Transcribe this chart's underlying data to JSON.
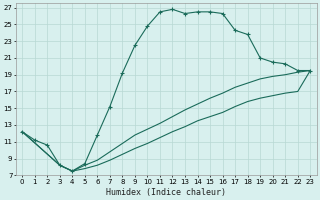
{
  "xlabel": "Humidex (Indice chaleur)",
  "bg_color": "#d8f0ee",
  "grid_color": "#b8d8d4",
  "line_color": "#1a6b5a",
  "xlim": [
    -0.5,
    23.5
  ],
  "ylim": [
    7,
    27.5
  ],
  "xticks": [
    0,
    1,
    2,
    3,
    4,
    5,
    6,
    7,
    8,
    9,
    10,
    11,
    12,
    13,
    14,
    15,
    16,
    17,
    18,
    19,
    20,
    21,
    22,
    23
  ],
  "yticks": [
    7,
    9,
    11,
    13,
    15,
    17,
    19,
    21,
    23,
    25,
    27
  ],
  "s1_x": [
    0,
    1,
    2,
    3,
    4,
    5,
    6,
    7,
    8,
    9,
    10,
    11,
    12,
    13,
    14,
    15,
    16,
    17,
    18,
    19,
    20,
    21,
    22,
    23
  ],
  "s1_y": [
    12.2,
    11.2,
    10.6,
    8.2,
    7.5,
    8.4,
    11.8,
    15.2,
    19.2,
    22.5,
    24.8,
    26.5,
    26.8,
    26.3,
    26.5,
    26.5,
    26.3,
    24.3,
    23.8,
    21.0,
    20.5,
    20.3,
    19.5,
    19.5
  ],
  "s2_x": [
    0,
    3,
    4,
    5,
    6,
    7,
    8,
    9,
    10,
    11,
    12,
    13,
    14,
    15,
    16,
    17,
    18,
    19,
    20,
    21,
    22,
    23
  ],
  "s2_y": [
    12.2,
    8.2,
    7.5,
    8.2,
    8.8,
    9.8,
    10.8,
    11.8,
    12.5,
    13.2,
    14.0,
    14.8,
    15.5,
    16.2,
    16.8,
    17.5,
    18.0,
    18.5,
    18.8,
    19.0,
    19.3,
    19.5
  ],
  "s3_x": [
    0,
    3,
    4,
    5,
    6,
    7,
    8,
    9,
    10,
    11,
    12,
    13,
    14,
    15,
    16,
    17,
    18,
    19,
    20,
    21,
    22,
    23
  ],
  "s3_y": [
    12.2,
    8.2,
    7.5,
    7.8,
    8.2,
    8.8,
    9.5,
    10.2,
    10.8,
    11.5,
    12.2,
    12.8,
    13.5,
    14.0,
    14.5,
    15.2,
    15.8,
    16.2,
    16.5,
    16.8,
    17.0,
    19.5
  ]
}
